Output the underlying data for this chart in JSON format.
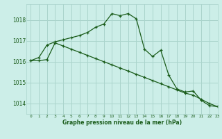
{
  "title": "Graphe pression niveau de la mer (hPa)",
  "bg_color": "#cceee8",
  "grid_color": "#aad4cc",
  "line_color": "#1a5c1a",
  "xlim": [
    -0.5,
    23
  ],
  "ylim": [
    1013.5,
    1018.75
  ],
  "yticks": [
    1014,
    1015,
    1016,
    1017,
    1018
  ],
  "xticks": [
    0,
    1,
    2,
    3,
    4,
    5,
    6,
    7,
    8,
    9,
    10,
    11,
    12,
    13,
    14,
    15,
    16,
    17,
    18,
    19,
    20,
    21,
    22,
    23
  ],
  "line1_x": [
    0,
    1,
    2,
    3,
    4,
    5,
    6,
    7,
    8,
    9,
    10,
    11,
    12,
    13,
    14,
    15,
    16,
    17,
    18,
    19,
    20,
    21,
    22,
    23
  ],
  "line1_y": [
    1016.05,
    1016.2,
    1016.8,
    1016.95,
    1017.05,
    1017.15,
    1017.25,
    1017.4,
    1017.65,
    1017.8,
    1018.3,
    1018.2,
    1018.3,
    1018.05,
    1016.6,
    1016.25,
    1016.55,
    1015.35,
    1014.7,
    1014.55,
    1014.6,
    1014.15,
    1013.9,
    1013.85
  ],
  "line2_x": [
    0,
    1,
    2,
    3,
    4,
    5,
    6,
    7,
    8,
    9,
    10,
    11,
    12,
    13,
    14,
    15,
    16,
    17,
    18,
    19,
    20,
    21,
    22,
    23
  ],
  "line2_y": [
    1016.05,
    1016.05,
    1016.1,
    1016.9,
    1016.75,
    1016.6,
    1016.45,
    1016.3,
    1016.15,
    1016.0,
    1015.85,
    1015.7,
    1015.55,
    1015.4,
    1015.25,
    1015.1,
    1014.95,
    1014.8,
    1014.65,
    1014.5,
    1014.4,
    1014.2,
    1014.0,
    1013.85
  ]
}
